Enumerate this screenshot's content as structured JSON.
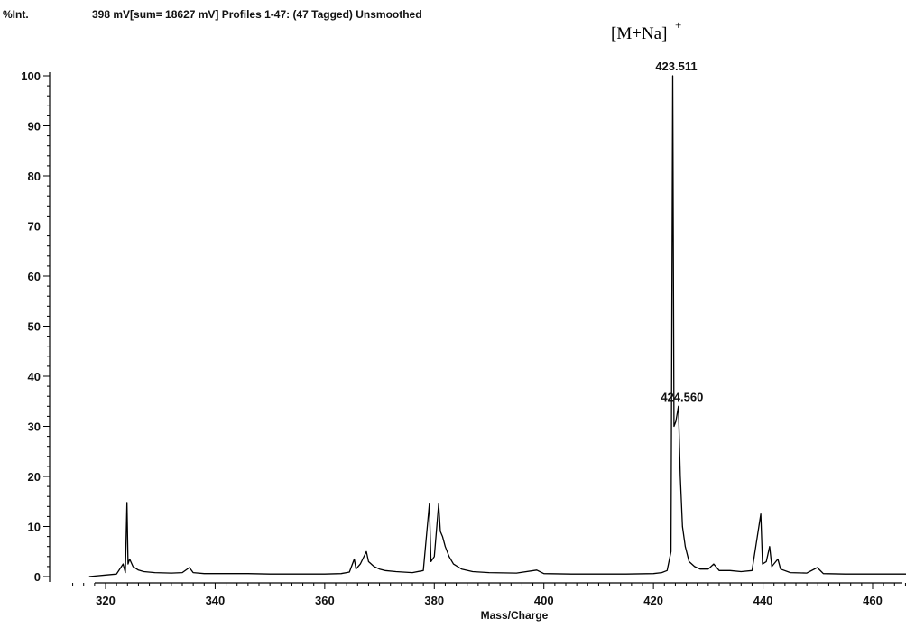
{
  "chart_data": {
    "type": "line",
    "y_axis_title": "%Int.",
    "header": "398 mV[sum= 18627 mV]  Profiles 1-47: (47 Tagged) Unsmoothed",
    "xlabel": "Mass/Charge",
    "ylabel": "%Int.",
    "xlim": [
      313,
      470
    ],
    "ylim": [
      0,
      100
    ],
    "x_ticks": [
      320,
      340,
      360,
      380,
      400,
      420,
      440,
      460
    ],
    "y_ticks": [
      0,
      10,
      20,
      30,
      40,
      50,
      60,
      70,
      80,
      90,
      100
    ],
    "grid": false,
    "ion_annotation": {
      "main": "[M+Na]",
      "sup": "+"
    },
    "peak_labels": [
      {
        "x": 423.511,
        "y": 100,
        "text": "423.511"
      },
      {
        "x": 424.56,
        "y": 34,
        "text": "424.560"
      }
    ],
    "series": [
      {
        "points": [
          [
            317,
            0
          ],
          [
            320,
            0.3
          ],
          [
            322,
            0.5
          ],
          [
            323.2,
            2.5
          ],
          [
            323.6,
            0.8
          ],
          [
            323.9,
            14.8
          ],
          [
            324.1,
            2.5
          ],
          [
            324.4,
            3.5
          ],
          [
            325,
            2
          ],
          [
            326,
            1.3
          ],
          [
            327,
            1
          ],
          [
            329,
            0.8
          ],
          [
            332,
            0.7
          ],
          [
            334,
            0.8
          ],
          [
            335.3,
            1.8
          ],
          [
            336,
            0.8
          ],
          [
            338,
            0.6
          ],
          [
            342,
            0.6
          ],
          [
            346,
            0.6
          ],
          [
            350,
            0.5
          ],
          [
            355,
            0.5
          ],
          [
            360,
            0.5
          ],
          [
            363,
            0.6
          ],
          [
            364.5,
            0.9
          ],
          [
            365.4,
            3.5
          ],
          [
            365.7,
            1.5
          ],
          [
            366.5,
            2.5
          ],
          [
            367.6,
            5
          ],
          [
            368,
            3
          ],
          [
            369,
            2
          ],
          [
            370,
            1.5
          ],
          [
            371,
            1.2
          ],
          [
            373,
            1
          ],
          [
            376,
            0.8
          ],
          [
            378,
            1.2
          ],
          [
            379.1,
            14.5
          ],
          [
            379.4,
            3
          ],
          [
            380,
            4
          ],
          [
            380.8,
            14.5
          ],
          [
            381.1,
            9
          ],
          [
            381.5,
            8
          ],
          [
            382,
            6
          ],
          [
            382.7,
            4
          ],
          [
            383.5,
            2.5
          ],
          [
            385,
            1.5
          ],
          [
            387,
            1
          ],
          [
            390,
            0.8
          ],
          [
            395,
            0.7
          ],
          [
            398.7,
            1.3
          ],
          [
            400,
            0.6
          ],
          [
            405,
            0.5
          ],
          [
            410,
            0.5
          ],
          [
            415,
            0.5
          ],
          [
            420,
            0.6
          ],
          [
            421.5,
            0.8
          ],
          [
            422.5,
            1.2
          ],
          [
            423.2,
            5
          ],
          [
            423.511,
            100
          ],
          [
            423.75,
            30
          ],
          [
            424.1,
            31
          ],
          [
            424.56,
            34
          ],
          [
            424.9,
            20
          ],
          [
            425.3,
            10
          ],
          [
            425.8,
            6
          ],
          [
            426.5,
            3
          ],
          [
            427.5,
            2
          ],
          [
            428.5,
            1.5
          ],
          [
            430,
            1.5
          ],
          [
            431,
            2.5
          ],
          [
            432,
            1.2
          ],
          [
            434,
            1.2
          ],
          [
            436,
            1
          ],
          [
            438,
            1.2
          ],
          [
            439.6,
            12.5
          ],
          [
            439.9,
            2.5
          ],
          [
            440.6,
            3
          ],
          [
            441.2,
            6
          ],
          [
            441.6,
            2
          ],
          [
            442.7,
            3.5
          ],
          [
            443.2,
            1.5
          ],
          [
            445,
            0.8
          ],
          [
            448,
            0.7
          ],
          [
            449.9,
            1.8
          ],
          [
            451,
            0.6
          ],
          [
            455,
            0.5
          ],
          [
            460,
            0.5
          ],
          [
            465,
            0.5
          ],
          [
            470,
            0.5
          ]
        ]
      }
    ]
  }
}
